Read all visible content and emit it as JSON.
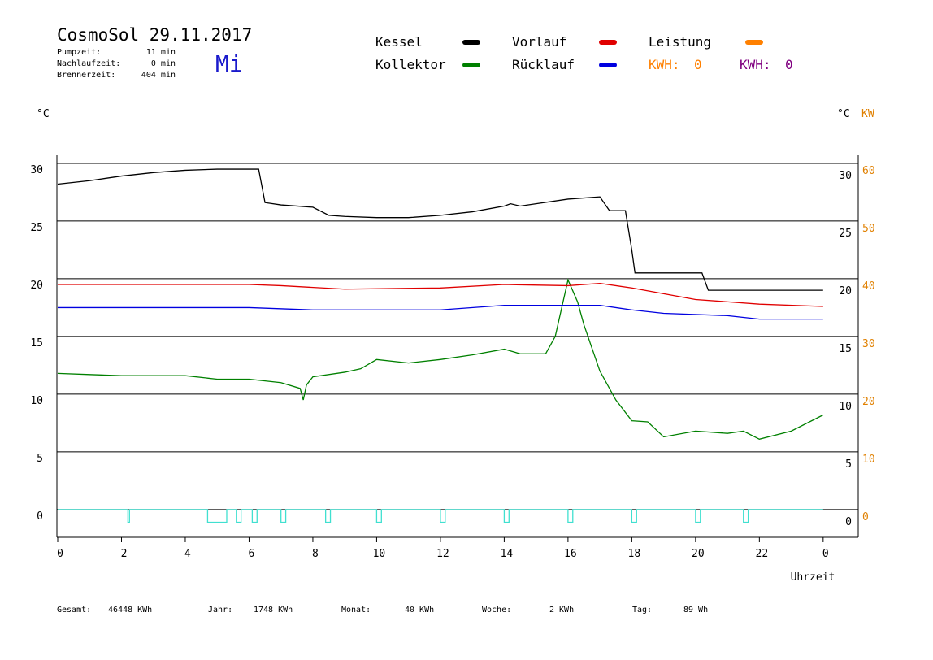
{
  "header": {
    "title": "CosmoSol 29.11.2017",
    "day": "Mi",
    "stats": [
      {
        "label": "Pumpzeit:",
        "value": "11 min"
      },
      {
        "label": "Nachlaufzeit:",
        "value": "0 min"
      },
      {
        "label": "Brennerzeit:",
        "value": "404 min"
      }
    ]
  },
  "chart_data": {
    "type": "line",
    "x_label": "Uhrzeit",
    "y_unit": "°C",
    "y2_unit": "°C",
    "y2_unit2": "KW",
    "xlim": [
      0,
      25.1
    ],
    "xticks": [
      0,
      2,
      4,
      6,
      8,
      10,
      12,
      14,
      16,
      18,
      20,
      22,
      {
        "value": 24,
        "label": "0"
      }
    ],
    "ylim": [
      -2.4,
      30.7
    ],
    "yticks": [
      0,
      5,
      10,
      15,
      20,
      25,
      30
    ],
    "y2lim": [
      -4.8,
      61.4
    ],
    "y2ticks": [
      0,
      10,
      20,
      30,
      40,
      50,
      60
    ],
    "grid": true,
    "series": [
      {
        "name": "Kessel",
        "color": "#000000",
        "x": [
          0,
          1,
          2,
          3,
          4,
          5,
          6,
          6.3,
          6.5,
          7,
          8,
          8.5,
          9,
          10,
          11,
          12,
          13,
          14,
          14.2,
          14.5,
          15,
          16,
          17,
          17.3,
          17.8,
          18,
          18.1,
          20,
          20.2,
          20.4,
          22,
          24
        ],
        "values": [
          28.2,
          28.5,
          28.9,
          29.2,
          29.4,
          29.5,
          29.5,
          29.5,
          26.6,
          26.4,
          26.2,
          25.5,
          25.4,
          25.3,
          25.3,
          25.5,
          25.8,
          26.3,
          26.5,
          26.3,
          26.5,
          26.9,
          27.1,
          25.9,
          25.9,
          22.5,
          20.5,
          20.5,
          20.5,
          19.0,
          19.0,
          19.0
        ]
      },
      {
        "name": "Kollektor",
        "color": "#008000",
        "x": [
          0,
          1,
          2,
          3,
          4,
          5,
          6,
          7,
          7.6,
          7.7,
          7.8,
          8,
          9,
          9.5,
          10,
          11,
          12,
          13,
          14,
          14.5,
          15.3,
          15.6,
          16,
          16.3,
          16.5,
          17,
          17.5,
          18,
          18.5,
          19,
          20,
          21,
          21.5,
          22,
          23,
          24
        ],
        "values": [
          11.8,
          11.7,
          11.6,
          11.6,
          11.6,
          11.3,
          11.3,
          11.0,
          10.5,
          9.5,
          10.8,
          11.5,
          11.9,
          12.2,
          13.0,
          12.7,
          13.0,
          13.4,
          13.9,
          13.5,
          13.5,
          15.0,
          19.9,
          18.0,
          16.0,
          12.0,
          9.5,
          7.7,
          7.6,
          6.3,
          6.8,
          6.6,
          6.8,
          6.1,
          6.8,
          8.2
        ]
      },
      {
        "name": "Vorlauf",
        "color": "#e00000",
        "x": [
          0,
          6,
          7,
          9,
          12,
          14,
          16,
          17,
          18,
          19,
          20,
          22,
          24
        ],
        "values": [
          19.5,
          19.5,
          19.4,
          19.1,
          19.2,
          19.5,
          19.4,
          19.6,
          19.2,
          18.7,
          18.2,
          17.8,
          17.6
        ]
      },
      {
        "name": "Rücklauf",
        "color": "#0000e0",
        "x": [
          0,
          6,
          8,
          12,
          14,
          17,
          18,
          19,
          21,
          22,
          24
        ],
        "values": [
          17.5,
          17.5,
          17.3,
          17.3,
          17.7,
          17.7,
          17.3,
          17.0,
          16.8,
          16.5,
          16.5
        ]
      },
      {
        "name": "Leistung",
        "color": "#ff8000",
        "x": [],
        "values": []
      },
      {
        "color": "#40e0d0",
        "x": [
          0,
          2.2,
          2.2,
          2.25,
          2.25,
          4.7,
          4.7,
          5.3,
          5.3,
          5.6,
          5.6,
          5.75,
          5.75,
          6.1,
          6.1,
          6.25,
          6.25,
          7.0,
          7.0,
          7.15,
          7.15,
          8.4,
          8.4,
          8.55,
          8.55,
          10.0,
          10.0,
          10.15,
          10.15,
          12.0,
          12.0,
          12.15,
          12.15,
          14.0,
          14.0,
          14.15,
          14.15,
          16.0,
          16.0,
          16.15,
          16.15,
          18.0,
          18.0,
          18.15,
          18.15,
          20.0,
          20.0,
          20.15,
          20.15,
          21.5,
          21.5,
          21.65,
          21.65,
          24
        ],
        "values": [
          0,
          0,
          -1.1,
          -1.1,
          0,
          0,
          -1.1,
          -1.1,
          0,
          0,
          -1.1,
          -1.1,
          0,
          0,
          -1.1,
          -1.1,
          0,
          0,
          -1.1,
          -1.1,
          0,
          0,
          -1.1,
          -1.1,
          0,
          0,
          -1.1,
          -1.1,
          0,
          0,
          -1.1,
          -1.1,
          0,
          0,
          -1.1,
          -1.1,
          0,
          0,
          -1.1,
          -1.1,
          0,
          0,
          -1.1,
          -1.1,
          0,
          0,
          -1.1,
          -1.1,
          0,
          0,
          -1.1,
          -1.1,
          0,
          0
        ]
      }
    ],
    "kwh": [
      {
        "label": "KWH:",
        "value": 0,
        "color": "#ff8000"
      },
      {
        "label": "KWH:",
        "value": 0,
        "color": "#800080"
      }
    ]
  },
  "footer": [
    {
      "label": "Gesamt:",
      "value": "46448 KWh"
    },
    {
      "label": "Jahr:",
      "value": "1748 KWh"
    },
    {
      "label": "Monat:",
      "value": "40 KWh"
    },
    {
      "label": "Woche:",
      "value": "2 KWh"
    },
    {
      "label": "Tag:",
      "value": "89 Wh"
    }
  ]
}
